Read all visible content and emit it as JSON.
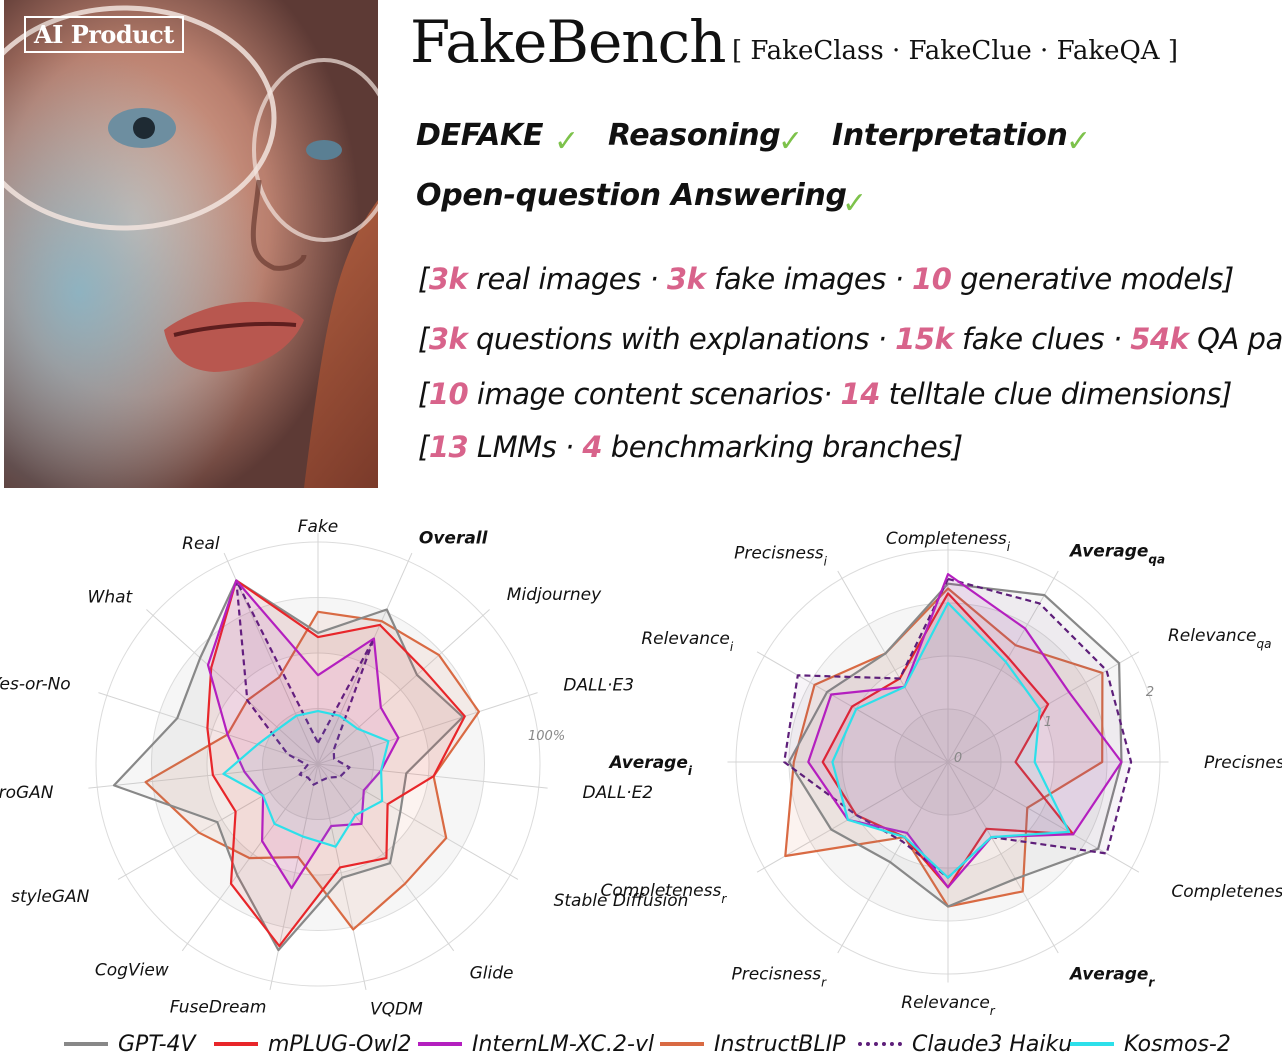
{
  "header": {
    "badge": "AI Product",
    "title": "FakeBench",
    "subtitle": "[ FakeClass · FakeClue · FakeQA ]"
  },
  "tasks": [
    {
      "label": "DEFAKE",
      "check": "✓"
    },
    {
      "label": "Reasoning",
      "check": "✓"
    },
    {
      "label": "Interpretation",
      "check": "✓"
    },
    {
      "label": "Open-question  Answering",
      "check": "✓"
    }
  ],
  "stats": [
    [
      {
        "t": "["
      },
      {
        "t": "3k",
        "h": true
      },
      {
        "t": " real images · "
      },
      {
        "t": "3k",
        "h": true
      },
      {
        "t": " fake images · "
      },
      {
        "t": "10",
        "h": true
      },
      {
        "t": " generative models]"
      }
    ],
    [
      {
        "t": "["
      },
      {
        "t": "3k",
        "h": true
      },
      {
        "t": " questions with explanations · "
      },
      {
        "t": "15k",
        "h": true
      },
      {
        "t": " fake clues · "
      },
      {
        "t": "54k",
        "h": true
      },
      {
        "t": " QA pairs]"
      }
    ],
    [
      {
        "t": "["
      },
      {
        "t": "10",
        "h": true
      },
      {
        "t": " image content scenarios· "
      },
      {
        "t": "14",
        "h": true
      },
      {
        "t": " telltale clue dimensions]"
      }
    ],
    [
      {
        "t": "["
      },
      {
        "t": "13",
        "h": true
      },
      {
        "t": " LMMs · "
      },
      {
        "t": "4",
        "h": true
      },
      {
        "t": " benchmarking branches]"
      }
    ]
  ],
  "colors": {
    "GPT-4V": "#888888",
    "mPLUG-Owl2": "#e8262a",
    "InternLM-XC.2-vl": "#b41fbf",
    "InstructBLIP": "#d96a43",
    "Claude3 Haiku": "#5e1f7a",
    "Kosmos-2": "#2de0ea",
    "highlight": "#d8638b",
    "check": "#7dc24b",
    "orange": "#f0a020"
  },
  "legend": [
    {
      "name": "GPT-4V",
      "style": "solid"
    },
    {
      "name": "mPLUG-Owl2",
      "style": "solid"
    },
    {
      "name": "InternLM-XC.2-vl",
      "style": "solid"
    },
    {
      "name": "InstructBLIP",
      "style": "solid"
    },
    {
      "name": "Claude3 Haiku",
      "style": "dotted"
    },
    {
      "name": "Kosmos-2",
      "style": "solid"
    }
  ],
  "chart_data": [
    {
      "type": "radar",
      "axes": [
        "Fake",
        "Overall",
        "Midjourney",
        "DALL·E3",
        "DALL·E2",
        "Stable Diffusion",
        "Glide",
        "VQDM",
        "FuseDream",
        "CogView",
        "styleGAN",
        "proGAN",
        "Yes-or-No",
        "What",
        "Real"
      ],
      "bold_axes": [
        "Overall"
      ],
      "tick_labels": [
        "100%"
      ],
      "range": [
        0,
        1.05
      ],
      "series": [
        {
          "name": "GPT-4V",
          "values": [
            0.62,
            0.8,
            0.63,
            0.72,
            0.42,
            0.45,
            0.58,
            0.55,
            0.9,
            0.65,
            0.55,
            0.97,
            0.7,
            0.75,
            0.95
          ]
        },
        {
          "name": "mPLUG-Owl2",
          "values": [
            0.6,
            0.72,
            0.67,
            0.73,
            0.55,
            0.38,
            0.55,
            0.5,
            0.88,
            0.7,
            0.45,
            0.5,
            0.55,
            0.68,
            0.95
          ]
        },
        {
          "name": "InternLM-XC.2-vl",
          "values": [
            0.42,
            0.65,
            0.4,
            0.4,
            0.3,
            0.25,
            0.35,
            0.3,
            0.6,
            0.45,
            0.3,
            0.35,
            0.45,
            0.7,
            0.95
          ]
        },
        {
          "name": "InstructBLIP",
          "values": [
            0.72,
            0.74,
            0.77,
            0.8,
            0.55,
            0.7,
            0.7,
            0.8,
            0.45,
            0.55,
            0.65,
            0.82,
            0.45,
            0.45,
            0.45
          ]
        },
        {
          "name": "Claude3 Haiku",
          "values": [
            0.1,
            0.65,
            0.1,
            0.08,
            0.15,
            0.12,
            0.08,
            0.08,
            0.1,
            0.08,
            0.1,
            0.05,
            0.15,
            0.45,
            0.95
          ]
        },
        {
          "name": "Kosmos-2",
          "values": [
            0.25,
            0.25,
            0.25,
            0.35,
            0.3,
            0.35,
            0.3,
            0.4,
            0.35,
            0.35,
            0.3,
            0.45,
            0.3,
            0.25,
            0.25
          ]
        }
      ]
    },
    {
      "type": "radar",
      "axes": [
        "Completeness_i",
        "Average_qa",
        "Relevance_qa",
        "Precisness_qa",
        "Completeness_qa",
        "Average_r",
        "Relevance_r",
        "Precisness_r",
        "Completeness_r",
        "Average_i",
        "Relevance_i",
        "Precisness_i"
      ],
      "bold_axes": [
        "Average_qa",
        "Average_r",
        "Average_i"
      ],
      "tick_labels": [
        "0",
        "1",
        "2"
      ],
      "range": [
        0,
        2.2
      ],
      "series": [
        {
          "name": "GPT-4V",
          "values": [
            1.85,
            2.0,
            2.05,
            1.8,
            1.8,
            1.4,
            1.5,
            1.2,
            1.4,
            1.65,
            1.45,
            1.3
          ]
        },
        {
          "name": "mPLUG-Owl2",
          "values": [
            1.75,
            1.25,
            1.2,
            0.7,
            1.5,
            0.8,
            1.3,
            0.9,
            1.1,
            1.3,
            1.15,
            1.0
          ]
        },
        {
          "name": "InternLM-XC.2-vl",
          "values": [
            1.95,
            1.6,
            1.45,
            1.8,
            1.5,
            0.9,
            1.3,
            0.85,
            1.2,
            1.45,
            1.4,
            0.9
          ]
        },
        {
          "name": "InstructBLIP",
          "values": [
            1.8,
            1.4,
            1.85,
            1.6,
            0.95,
            1.55,
            1.5,
            0.9,
            1.95,
            1.6,
            1.6,
            1.3
          ]
        },
        {
          "name": "Claude3 Haiku",
          "values": [
            1.9,
            1.9,
            1.9,
            1.9,
            1.9,
            0.9,
            1.2,
            0.95,
            1.1,
            1.7,
            1.8,
            1.0
          ]
        },
        {
          "name": "Kosmos-2",
          "values": [
            1.65,
            1.2,
            1.1,
            0.9,
            1.45,
            0.9,
            1.2,
            0.9,
            1.2,
            1.2,
            1.1,
            0.9
          ]
        }
      ]
    }
  ]
}
